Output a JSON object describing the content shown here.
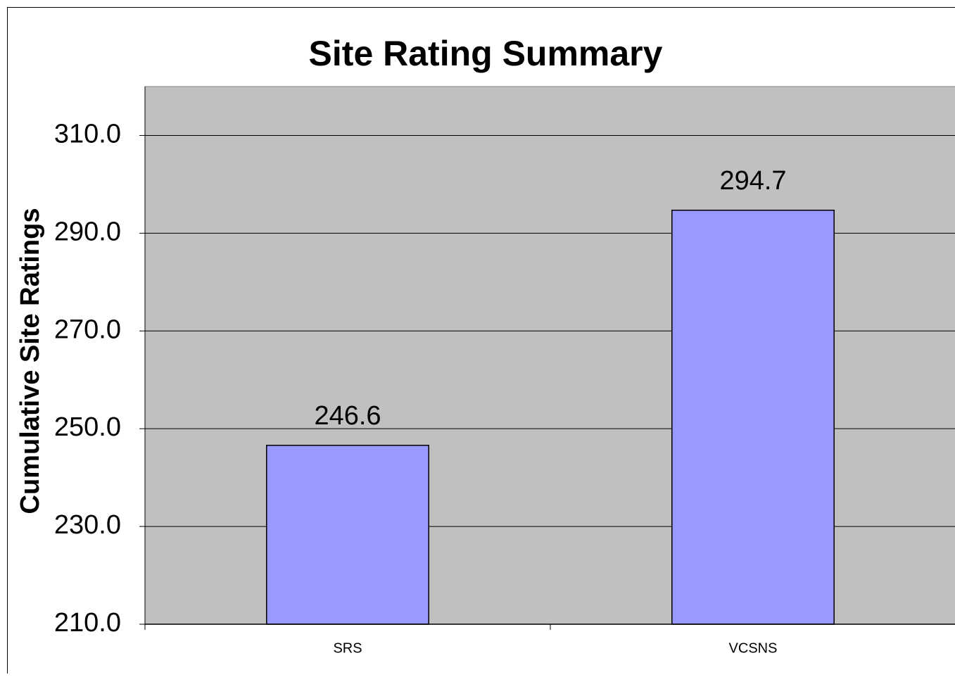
{
  "chart_data": {
    "type": "bar",
    "title": "Site Rating Summary",
    "y_label": "Cumulative Site Ratings",
    "categories": [
      "SRS",
      "VCSNS"
    ],
    "values": [
      246.6,
      294.7
    ],
    "color": "#9999ff",
    "ylim": [
      210,
      320
    ],
    "yticks": [
      {
        "value": 210,
        "label": "210.0"
      },
      {
        "value": 230,
        "label": "230.0"
      },
      {
        "value": 250,
        "label": "250.0"
      },
      {
        "value": 270,
        "label": "270.0"
      },
      {
        "value": 290,
        "label": "290.0"
      },
      {
        "value": 310,
        "label": "310.0"
      }
    ],
    "grid": true
  }
}
